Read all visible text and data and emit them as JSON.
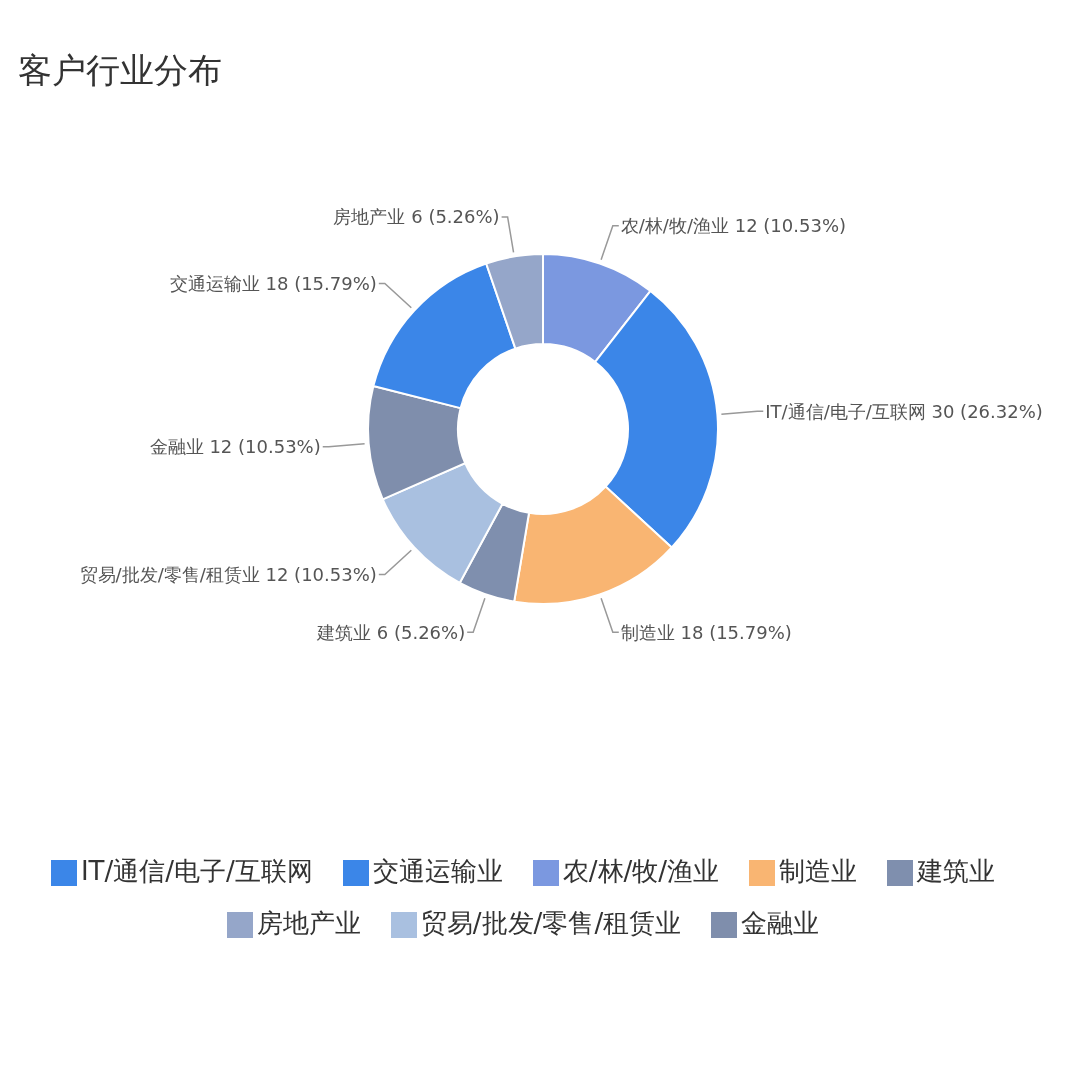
{
  "chart_data": {
    "type": "donut",
    "title": "客户行业分布",
    "categories": [
      "农/林/牧/渔业",
      "IT/通信/电子/互联网",
      "制造业",
      "建筑业",
      "贸易/批发/零售/租赁业",
      "金融业",
      "交通运输业",
      "房地产业"
    ],
    "values": [
      12,
      30,
      18,
      6,
      12,
      12,
      18,
      6
    ],
    "value_labels": [
      "12 (10.53%)",
      "30 (26.32%)",
      "18 (15.79%)",
      "6 (5.26%)",
      "12 (10.53%)",
      "12 (10.53%)",
      "18 (15.79%)",
      "6 (5.26%)"
    ],
    "colors": [
      "#7b98e0",
      "#3b86e8",
      "#f9b572",
      "#7f8fae",
      "#a9c0e0",
      "#7f8eac",
      "#3b86e8",
      "#95a6c9"
    ],
    "legend": "bottom"
  }
}
